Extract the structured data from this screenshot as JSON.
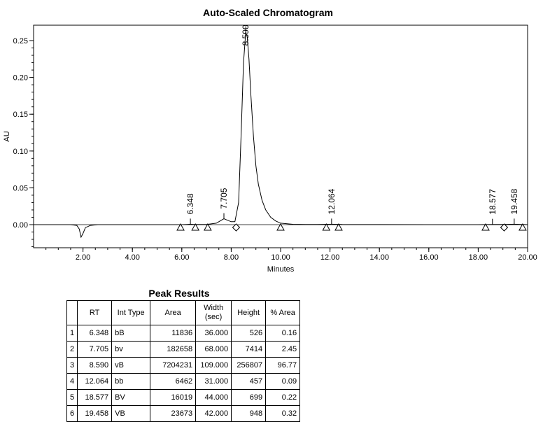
{
  "chart_data": {
    "type": "line",
    "title": "Auto-Scaled Chromatogram",
    "xlabel": "Minutes",
    "ylabel": "AU",
    "xlim": [
      0,
      20
    ],
    "ylim": [
      -0.03,
      0.265
    ],
    "x_ticks": [
      "2.00",
      "4.00",
      "6.00",
      "8.00",
      "10.00",
      "12.00",
      "14.00",
      "16.00",
      "18.00",
      "20.00"
    ],
    "y_ticks": [
      "0.00",
      "0.05",
      "0.10",
      "0.15",
      "0.20",
      "0.25"
    ],
    "peak_labels": [
      "6.348",
      "7.705",
      "8.590",
      "12.064",
      "18.577",
      "19.458"
    ],
    "trace": {
      "x": [
        0,
        0.5,
        1.0,
        1.5,
        1.75,
        1.85,
        1.92,
        2.0,
        2.1,
        2.3,
        2.6,
        3.0,
        4.0,
        5.0,
        6.0,
        6.2,
        6.35,
        6.5,
        7.0,
        7.4,
        7.6,
        7.705,
        7.85,
        8.0,
        8.15,
        8.3,
        8.4,
        8.5,
        8.59,
        8.65,
        8.72,
        8.8,
        8.9,
        9.0,
        9.1,
        9.25,
        9.4,
        9.6,
        9.8,
        10.0,
        10.5,
        11.0,
        11.5,
        12.064,
        12.5,
        14.0,
        16.0,
        18.0,
        18.577,
        19.0,
        19.458,
        20.0
      ],
      "y": [
        0.0,
        0.0,
        0.0,
        0.0,
        -0.001,
        -0.006,
        -0.017,
        -0.012,
        -0.004,
        -0.001,
        0.0,
        0.0,
        0.0,
        0.0,
        0.0,
        0.0003,
        0.0006,
        0.0003,
        0.0002,
        0.002,
        0.006,
        0.008,
        0.006,
        0.004,
        0.004,
        0.03,
        0.12,
        0.22,
        0.262,
        0.255,
        0.225,
        0.175,
        0.12,
        0.08,
        0.055,
        0.033,
        0.02,
        0.01,
        0.005,
        0.002,
        0.0005,
        0.0003,
        0.0002,
        0.0006,
        0.0002,
        0.0001,
        0.0,
        0.0,
        0.0003,
        0.0002,
        0.0006,
        0.0
      ]
    },
    "triangle_markers_x": [
      5.95,
      6.55,
      7.05,
      10.0,
      11.85,
      12.35,
      18.3,
      19.8
    ],
    "diamond_markers_x": [
      8.2,
      19.05
    ],
    "line_color": "#000000"
  },
  "results": {
    "title": "Peak Results",
    "headers": [
      "",
      "RT",
      "Int Type",
      "Area",
      "Width (sec)",
      "Height",
      "% Area"
    ],
    "rows": [
      [
        "1",
        "6.348",
        "bB",
        "11836",
        "36.000",
        "526",
        "0.16"
      ],
      [
        "2",
        "7.705",
        "bv",
        "182658",
        "68.000",
        "7414",
        "2.45"
      ],
      [
        "3",
        "8.590",
        "vB",
        "7204231",
        "109.000",
        "256807",
        "96.77"
      ],
      [
        "4",
        "12.064",
        "bb",
        "6462",
        "31.000",
        "457",
        "0.09"
      ],
      [
        "5",
        "18.577",
        "BV",
        "16019",
        "44.000",
        "699",
        "0.22"
      ],
      [
        "6",
        "19.458",
        "VB",
        "23673",
        "42.000",
        "948",
        "0.32"
      ]
    ]
  }
}
